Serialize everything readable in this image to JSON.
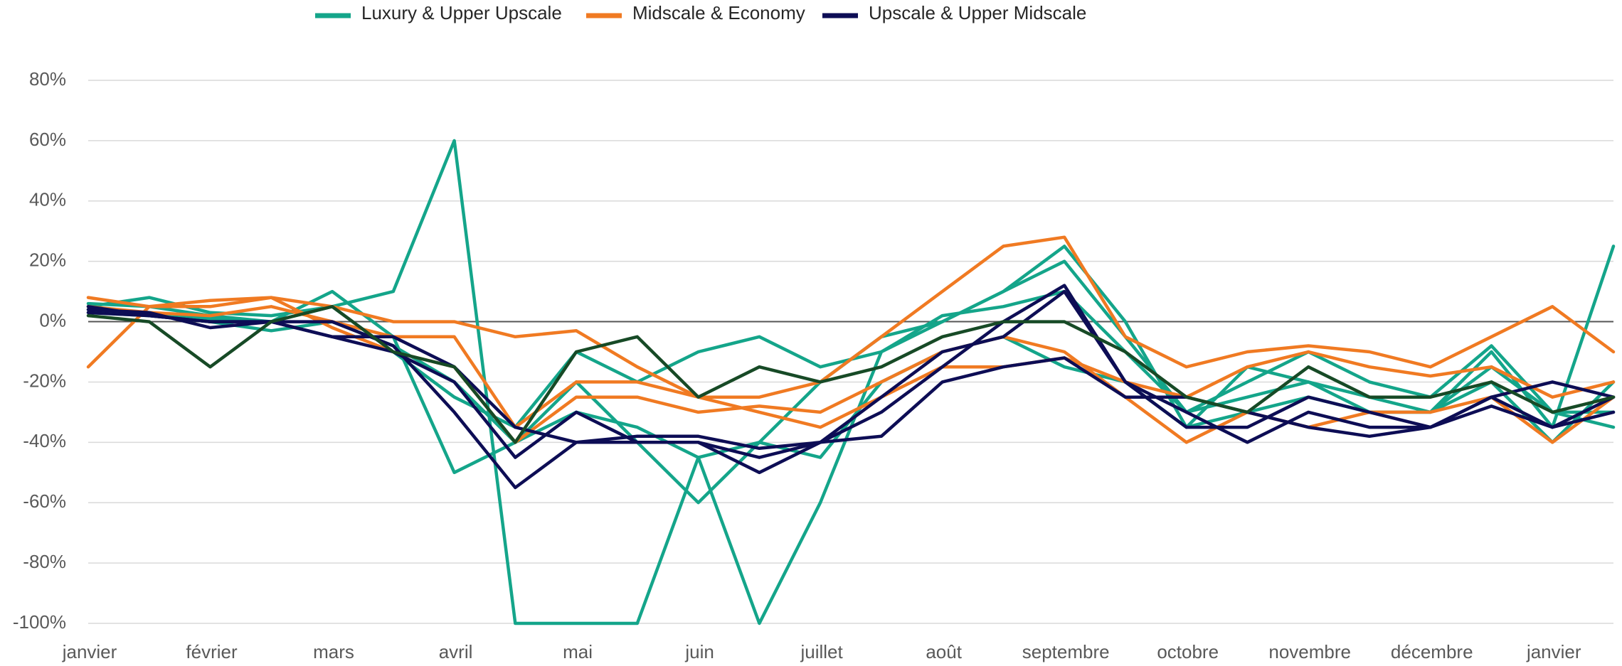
{
  "chart_data": {
    "type": "line",
    "categories": [
      "janvier",
      null,
      "février",
      null,
      "mars",
      null,
      "avril",
      null,
      "mai",
      null,
      "juin",
      null,
      "juillet",
      null,
      "août",
      null,
      "septembre",
      null,
      "octobre",
      null,
      "novembre",
      null,
      "décembre",
      null,
      "janvier",
      null
    ],
    "ylim": [
      -100,
      80
    ],
    "yticks": [
      {
        "value": -100,
        "label": "-100%"
      },
      {
        "value": -80,
        "label": "-80%"
      },
      {
        "value": -60,
        "label": "-60%"
      },
      {
        "value": -40,
        "label": "-40%"
      },
      {
        "value": -20,
        "label": "-20%"
      },
      {
        "value": 0,
        "label": "0%"
      },
      {
        "value": 20,
        "label": "20%"
      },
      {
        "value": 40,
        "label": "40%"
      },
      {
        "value": 60,
        "label": "60%"
      },
      {
        "value": 80,
        "label": "80%"
      }
    ],
    "grid": true,
    "legend": "top",
    "series": [
      {
        "name": "Luxury & Upper Upscale",
        "color": "#14a58a",
        "lines": [
          [
            5,
            8,
            3,
            2,
            5,
            10,
            60,
            -100,
            -100,
            -100,
            -45,
            -100,
            -60,
            -10,
            0,
            10,
            20,
            -5,
            -30,
            -25,
            -20,
            -25,
            -30,
            -20,
            -40,
            -20
          ],
          [
            6,
            5,
            2,
            0,
            10,
            -5,
            -50,
            -40,
            -20,
            -40,
            -60,
            -40,
            -20,
            -5,
            0,
            10,
            25,
            0,
            -35,
            -30,
            -25,
            -30,
            -30,
            -10,
            -35,
            25
          ],
          [
            4,
            3,
            1,
            0,
            5,
            -10,
            -25,
            -35,
            -10,
            -20,
            -10,
            -5,
            -15,
            -10,
            2,
            5,
            10,
            -10,
            -30,
            -20,
            -10,
            -20,
            -25,
            -8,
            -30,
            -30
          ],
          [
            3,
            2,
            0,
            -3,
            0,
            -8,
            -20,
            -40,
            -30,
            -35,
            -45,
            -40,
            -45,
            -20,
            -10,
            -5,
            -15,
            -20,
            -35,
            -15,
            -20,
            -30,
            -30,
            -15,
            -30,
            -35
          ]
        ]
      },
      {
        "name": "Midscale & Economy",
        "color": "#f07a22",
        "lines": [
          [
            -15,
            5,
            7,
            8,
            5,
            0,
            0,
            -5,
            -3,
            -15,
            -25,
            -25,
            -20,
            -5,
            10,
            25,
            28,
            -5,
            -15,
            -10,
            -8,
            -10,
            -15,
            -5,
            5,
            -10
          ],
          [
            8,
            5,
            5,
            8,
            -2,
            -10,
            -15,
            -40,
            -25,
            -25,
            -30,
            -28,
            -30,
            -20,
            -10,
            -5,
            -10,
            -25,
            -40,
            -30,
            -35,
            -30,
            -30,
            -25,
            -40,
            -25
          ],
          [
            5,
            3,
            2,
            5,
            0,
            -5,
            -5,
            -35,
            -20,
            -20,
            -25,
            -30,
            -35,
            -25,
            -15,
            -15,
            -12,
            -20,
            -25,
            -15,
            -10,
            -15,
            -18,
            -15,
            -25,
            -20
          ]
        ]
      },
      {
        "name": "Upscale & Upper Midscale",
        "color": "#0d0d55",
        "lines": [
          [
            3,
            2,
            0,
            0,
            -5,
            -10,
            -20,
            -45,
            -30,
            -40,
            -40,
            -45,
            -40,
            -25,
            -10,
            -5,
            10,
            -20,
            -30,
            -40,
            -30,
            -35,
            -35,
            -28,
            -35,
            -25
          ],
          [
            5,
            2,
            0,
            0,
            0,
            -8,
            -30,
            -55,
            -40,
            -40,
            -40,
            -50,
            -40,
            -30,
            -15,
            0,
            12,
            -20,
            -35,
            -35,
            -25,
            -30,
            -35,
            -25,
            -35,
            -30
          ],
          [
            4,
            3,
            -2,
            0,
            -5,
            -5,
            -15,
            -35,
            -40,
            -38,
            -38,
            -42,
            -40,
            -38,
            -20,
            -15,
            -12,
            -25,
            -25,
            -30,
            -35,
            -38,
            -35,
            -25,
            -20,
            -25
          ]
        ]
      },
      {
        "color": "#174a26",
        "lines": [
          [
            2,
            0,
            -15,
            0,
            5,
            -10,
            -15,
            -40,
            -10,
            -5,
            -25,
            -15,
            -20,
            -15,
            -5,
            0,
            0,
            -10,
            -25,
            -30,
            -15,
            -25,
            -25,
            -20,
            -30,
            -25
          ]
        ]
      }
    ]
  }
}
